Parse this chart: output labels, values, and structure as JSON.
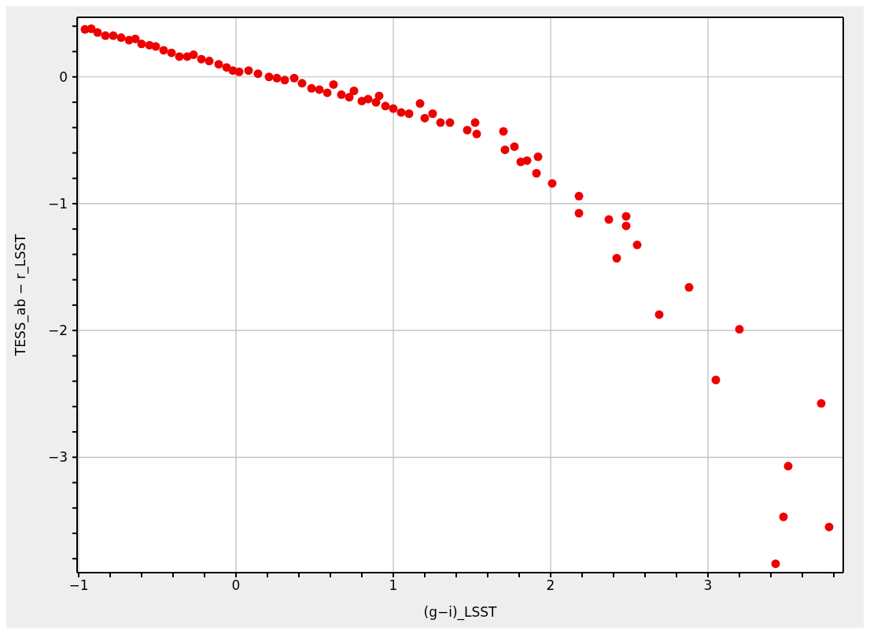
{
  "chart_data": {
    "type": "scatter",
    "xlabel": "(g−i)_LSST",
    "ylabel": "TESS_ab − r_LSST",
    "marker": "circle",
    "grid": true,
    "xlim": [
      -1.01,
      3.86
    ],
    "ylim": [
      -3.91,
      0.47
    ],
    "xticks": [
      {
        "value": -0.8,
        "label": null
      },
      {
        "value": -0.6,
        "label": null
      },
      {
        "value": -0.4,
        "label": null
      },
      {
        "value": -0.2,
        "label": null
      },
      -1,
      0,
      1,
      2,
      3,
      {
        "value": 0.2,
        "label": null
      },
      {
        "value": 0.4,
        "label": null
      },
      {
        "value": 0.6,
        "label": null
      },
      {
        "value": 0.8,
        "label": null
      },
      {
        "value": 1.2,
        "label": null
      },
      {
        "value": 1.4,
        "label": null
      },
      {
        "value": 1.6,
        "label": null
      },
      {
        "value": 1.8,
        "label": null
      },
      {
        "value": 2.2,
        "label": null
      },
      {
        "value": 2.4,
        "label": null
      },
      {
        "value": 2.6,
        "label": null
      },
      {
        "value": 2.8,
        "label": null
      },
      {
        "value": 3.2,
        "label": null
      },
      {
        "value": 3.4,
        "label": null
      },
      {
        "value": 3.6,
        "label": null
      },
      {
        "value": 3.8,
        "label": null
      }
    ],
    "yticks": [
      -3,
      -2,
      -1,
      0,
      {
        "value": 0.2,
        "label": null
      },
      {
        "value": 0.4,
        "label": null
      },
      {
        "value": -0.2,
        "label": null
      },
      {
        "value": -0.4,
        "label": null
      },
      {
        "value": -0.6,
        "label": null
      },
      {
        "value": -0.8,
        "label": null
      },
      {
        "value": -1.2,
        "label": null
      },
      {
        "value": -1.4,
        "label": null
      },
      {
        "value": -1.6,
        "label": null
      },
      {
        "value": -1.8,
        "label": null
      },
      {
        "value": -2.2,
        "label": null
      },
      {
        "value": -2.4,
        "label": null
      },
      {
        "value": -2.6,
        "label": null
      },
      {
        "value": -2.8,
        "label": null
      },
      {
        "value": -3.2,
        "label": null
      },
      {
        "value": -3.4,
        "label": null
      },
      {
        "value": -3.6,
        "label": null
      },
      {
        "value": -3.8,
        "label": null
      }
    ],
    "series": [
      {
        "color": "#ee0000",
        "x": [
          -0.96,
          -0.92,
          -0.88,
          -0.83,
          -0.78,
          -0.73,
          -0.68,
          -0.64,
          -0.6,
          -0.55,
          -0.51,
          -0.46,
          -0.41,
          -0.36,
          -0.31,
          -0.27,
          -0.22,
          -0.17,
          -0.11,
          -0.06,
          -0.02,
          0.02,
          0.08,
          0.14,
          0.21,
          0.26,
          0.31,
          0.37,
          0.42,
          0.48,
          0.53,
          0.58,
          0.62,
          0.67,
          0.72,
          0.75,
          0.8,
          0.84,
          0.89,
          0.91,
          0.95,
          1.0,
          1.05,
          1.1,
          1.17,
          1.2,
          1.25,
          1.3,
          1.36,
          1.47,
          1.52,
          1.53,
          1.7,
          1.71,
          1.77,
          1.81,
          1.85,
          1.91,
          1.92,
          2.01,
          2.18,
          2.18,
          2.37,
          2.42,
          2.48,
          2.48,
          2.55,
          2.69,
          2.88,
          3.05,
          3.2,
          3.72,
          3.51,
          3.48,
          3.77,
          3.43
        ],
        "values": [
          0.375,
          0.38,
          0.35,
          0.325,
          0.325,
          0.31,
          0.29,
          0.3,
          0.26,
          0.25,
          0.24,
          0.21,
          0.19,
          0.16,
          0.16,
          0.175,
          0.14,
          0.125,
          0.1,
          0.075,
          0.05,
          0.04,
          0.05,
          0.025,
          0,
          -0.01,
          -0.025,
          -0.01,
          -0.05,
          -0.09,
          -0.1,
          -0.125,
          -0.06,
          -0.14,
          -0.16,
          -0.11,
          -0.19,
          -0.175,
          -0.2,
          -0.15,
          -0.23,
          -0.25,
          -0.28,
          -0.29,
          -0.21,
          -0.325,
          -0.29,
          -0.36,
          -0.36,
          -0.42,
          -0.36,
          -0.45,
          -0.43,
          -0.575,
          -0.55,
          -0.67,
          -0.66,
          -0.76,
          -0.63,
          -0.84,
          -0.94,
          -1.075,
          -1.125,
          -1.43,
          -1.1,
          -1.175,
          -1.325,
          -1.875,
          -1.66,
          -2.39,
          -1.99,
          -2.575,
          -3.07,
          -3.47,
          -3.55,
          -3.84
        ]
      }
    ]
  }
}
